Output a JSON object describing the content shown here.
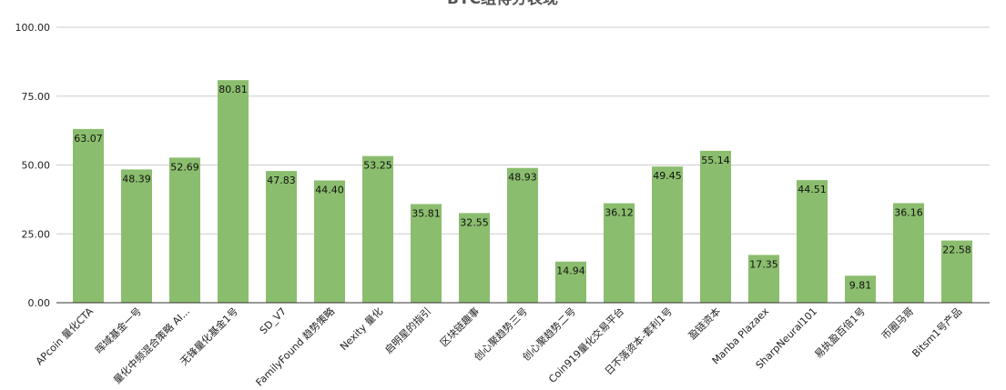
{
  "chart_data": {
    "type": "bar",
    "title": "BTC组得分表现",
    "xlabel": "",
    "ylabel": "",
    "ylim": [
      0,
      100
    ],
    "yticks": [
      "0.00",
      "25.00",
      "50.00",
      "75.00",
      "100.00"
    ],
    "grid": true,
    "bar_color": "#8bbd6e",
    "categories": [
      "APcoin 量化CTA",
      "晖域基金一号",
      "量化中频混合策略 AI...",
      "无锋量化基金1号",
      "SD_V7",
      "FamilyFound 趋势策略",
      "Nexity 量化",
      "启明星的指引",
      "区块链趣事",
      "创心聚趋势三号",
      "创心聚趋势二号",
      "Coin919量化交易平台",
      "日不落资本-套利1号",
      "盈链资本",
      "Manba Plazaex",
      "SharpNeural101",
      "易执盈百倍1号",
      "币圈马哥",
      "Bitsm1号产品"
    ],
    "values": [
      63.07,
      48.39,
      52.69,
      80.81,
      47.83,
      44.4,
      53.25,
      35.81,
      32.55,
      48.93,
      14.94,
      36.12,
      49.45,
      55.14,
      17.35,
      44.51,
      9.81,
      36.16,
      22.58
    ],
    "labels": [
      "63.07",
      "48.39",
      "52.69",
      "80.81",
      "47.83",
      "44.40",
      "53.25",
      "35.81",
      "32.55",
      "48.93",
      "14.94",
      "36.12",
      "49.45",
      "55.14",
      "17.35",
      "44.51",
      "9.81",
      "36.16",
      "22.58"
    ]
  }
}
